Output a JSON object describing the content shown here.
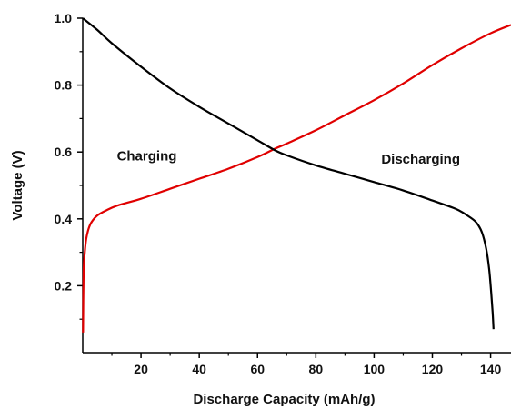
{
  "chart_data": {
    "type": "line",
    "xlabel": "Discharge Capacity (mAh/g)",
    "ylabel": "Voltage (V)",
    "xlim": [
      0,
      147
    ],
    "ylim": [
      0.0,
      1.0
    ],
    "x_ticks": [
      20,
      40,
      60,
      80,
      100,
      120,
      140
    ],
    "y_ticks": [
      0.2,
      0.4,
      0.6,
      0.8,
      1.0
    ],
    "y_tick_labels": [
      "0.2",
      "0.4",
      "0.6",
      "0.8",
      "1.0"
    ],
    "grid": false,
    "annotations": [
      {
        "text": "Charging",
        "x": 22,
        "y": 0.575
      },
      {
        "text": "Discharging",
        "x": 116,
        "y": 0.565
      }
    ],
    "series": [
      {
        "color": "#e00000",
        "x": [
          0.1,
          0.3,
          0.7,
          1.2,
          2,
          3,
          5,
          8,
          12,
          20,
          30,
          40,
          50,
          60,
          66,
          70,
          80,
          90,
          100,
          110,
          120,
          130,
          140,
          147
        ],
        "y": [
          0.06,
          0.24,
          0.3,
          0.34,
          0.37,
          0.39,
          0.41,
          0.425,
          0.44,
          0.46,
          0.49,
          0.52,
          0.55,
          0.585,
          0.61,
          0.625,
          0.665,
          0.71,
          0.755,
          0.805,
          0.86,
          0.91,
          0.955,
          0.98
        ]
      },
      {
        "color": "#000000",
        "x": [
          0,
          5,
          10,
          20,
          30,
          40,
          50,
          60,
          66,
          70,
          80,
          90,
          100,
          110,
          120,
          128,
          132,
          135,
          137,
          138.5,
          139.5,
          140.2,
          140.7,
          141.0
        ],
        "y": [
          1.0,
          0.965,
          0.925,
          0.855,
          0.79,
          0.735,
          0.685,
          0.635,
          0.605,
          0.59,
          0.56,
          0.535,
          0.51,
          0.485,
          0.455,
          0.43,
          0.41,
          0.39,
          0.36,
          0.31,
          0.25,
          0.18,
          0.12,
          0.07
        ]
      }
    ]
  }
}
